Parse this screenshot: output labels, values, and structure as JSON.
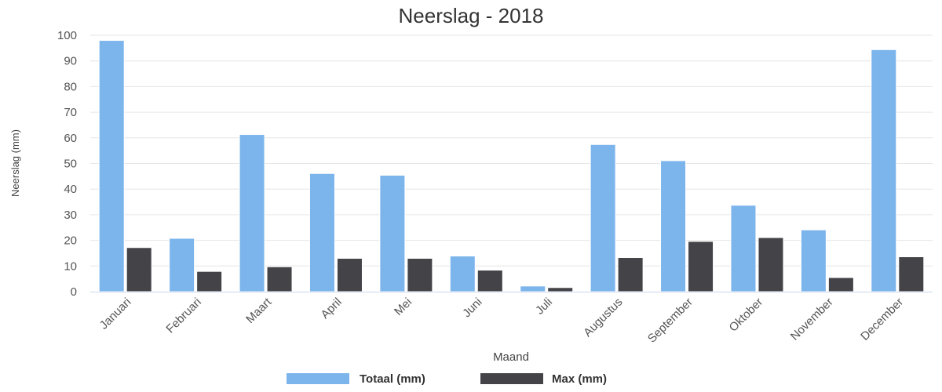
{
  "chart_data": {
    "type": "bar",
    "title": "Neerslag - 2018",
    "xlabel": "Maand",
    "ylabel": "Neerslag (mm)",
    "ylim": [
      0,
      100
    ],
    "yticks": [
      0,
      10,
      20,
      30,
      40,
      50,
      60,
      70,
      80,
      90,
      100
    ],
    "grid": true,
    "legend_position": "bottom",
    "categories": [
      "Januari",
      "Februari",
      "Maart",
      "April",
      "Mei",
      "Juni",
      "Juli",
      "Augustus",
      "September",
      "Oktober",
      "November",
      "December"
    ],
    "series": [
      {
        "name": "Totaal (mm)",
        "color": "#7cb5ec",
        "values": [
          98,
          20.8,
          61.3,
          46.1,
          45.4,
          13.9,
          2.2,
          57.4,
          51.1,
          33.7,
          24.1,
          94.4
        ]
      },
      {
        "name": "Max (mm)",
        "color": "#434348",
        "values": [
          17.2,
          7.9,
          9.7,
          13.0,
          13.0,
          8.4,
          1.6,
          13.3,
          19.6,
          21.1,
          5.5,
          13.6
        ]
      }
    ]
  }
}
